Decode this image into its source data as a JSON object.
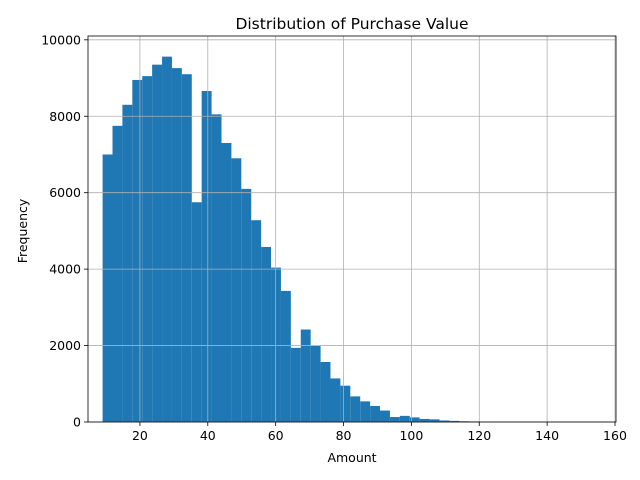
{
  "chart_data": {
    "type": "bar",
    "title": "Distribution of Purchase Value",
    "xlabel": "Amount",
    "ylabel": "Frequency",
    "xlim": [
      4.7,
      160.3
    ],
    "ylim": [
      0,
      10100
    ],
    "x_ticks": [
      20,
      40,
      60,
      80,
      100,
      120,
      140,
      160
    ],
    "y_ticks": [
      0,
      2000,
      4000,
      6000,
      8000,
      10000
    ],
    "grid": true,
    "bar_color": "#1f77b4",
    "bin_start": 9,
    "bin_width": 2.92,
    "values": [
      7000,
      7750,
      8300,
      8950,
      9050,
      9350,
      9560,
      9260,
      9100,
      5750,
      8660,
      8050,
      7300,
      6900,
      6100,
      5280,
      4580,
      4040,
      3430,
      1940,
      2420,
      1990,
      1570,
      1140,
      950,
      670,
      540,
      420,
      300,
      130,
      160,
      120,
      80,
      70,
      40,
      30,
      20,
      15,
      10,
      8,
      6,
      5,
      4,
      3,
      3,
      2,
      2,
      1,
      1,
      1,
      1
    ]
  }
}
